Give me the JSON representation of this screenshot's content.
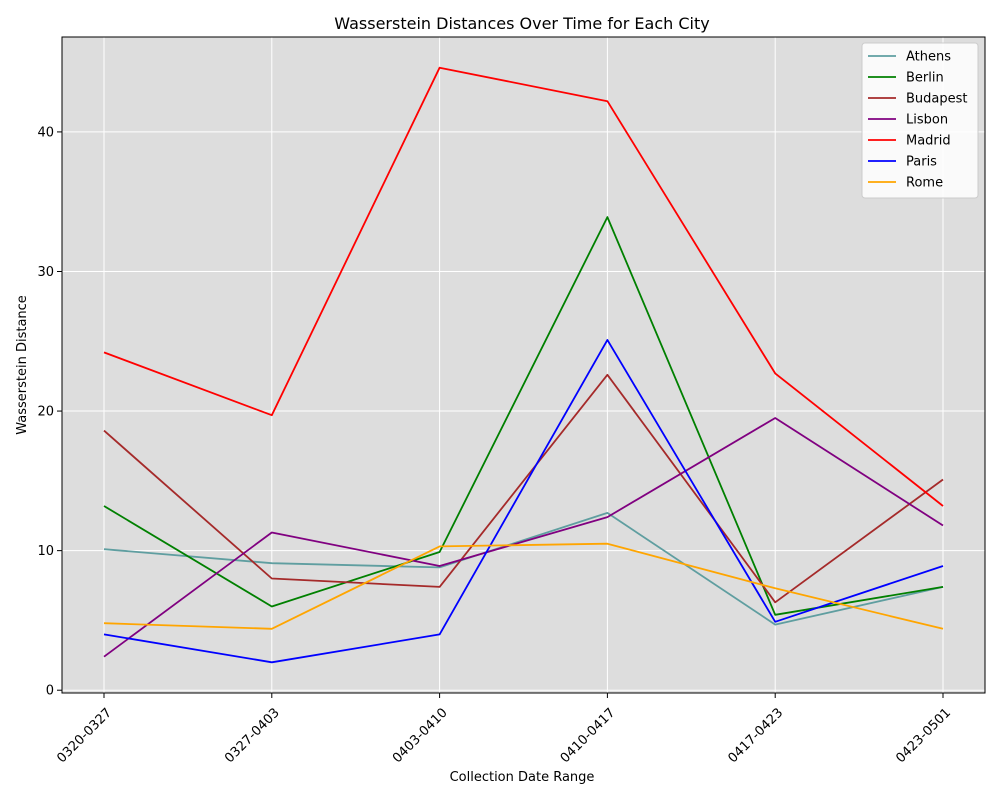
{
  "chart_data": {
    "type": "line",
    "title": "Wasserstein Distances Over Time for Each City",
    "xlabel": "Collection Date Range",
    "ylabel": "Wasserstein Distance",
    "categories": [
      "0320-0327",
      "0327-0403",
      "0403-0410",
      "0410-0417",
      "0417-0423",
      "0423-0501"
    ],
    "ylim": [
      -0.2,
      46.8
    ],
    "yticks": [
      0,
      10,
      20,
      30,
      40
    ],
    "grid": true,
    "legend_position": "top-right",
    "background": "#dddddd",
    "series": [
      {
        "name": "Athens",
        "color": "#5f9ea0",
        "values": [
          10.1,
          9.1,
          8.8,
          12.7,
          4.7,
          7.4
        ]
      },
      {
        "name": "Berlin",
        "color": "#008000",
        "values": [
          13.2,
          6.0,
          9.9,
          33.9,
          5.4,
          7.4
        ]
      },
      {
        "name": "Budapest",
        "color": "#a52a2a",
        "values": [
          18.6,
          8.0,
          7.4,
          22.6,
          6.3,
          15.1
        ]
      },
      {
        "name": "Lisbon",
        "color": "#800080",
        "values": [
          2.4,
          11.3,
          8.9,
          12.4,
          19.5,
          11.8
        ]
      },
      {
        "name": "Madrid",
        "color": "#ff0000",
        "values": [
          24.2,
          19.7,
          44.6,
          42.2,
          22.7,
          13.2
        ]
      },
      {
        "name": "Paris",
        "color": "#0000ff",
        "values": [
          4.0,
          2.0,
          4.0,
          25.1,
          4.9,
          8.9
        ]
      },
      {
        "name": "Rome",
        "color": "#ffa500",
        "values": [
          4.8,
          4.4,
          10.3,
          10.5,
          7.3,
          4.4
        ]
      }
    ]
  }
}
